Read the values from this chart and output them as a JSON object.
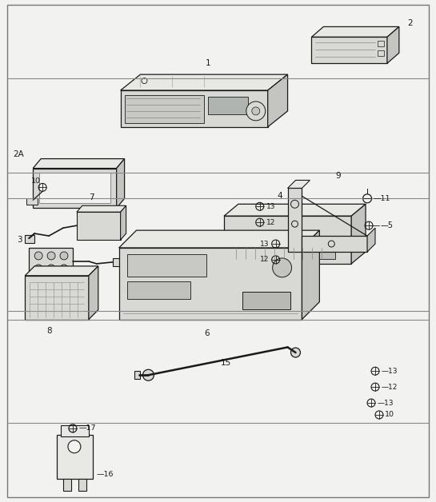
{
  "bg_color": "#f2f2f0",
  "border_color": "#666666",
  "line_color": "#1a1a1a",
  "fill_light": "#e8e8e4",
  "fill_mid": "#d8d8d4",
  "fill_dark": "#c4c4c0",
  "section_dividers": [
    0.62,
    0.395,
    0.155
  ],
  "figsize": [
    5.45,
    6.28
  ],
  "dpi": 100
}
